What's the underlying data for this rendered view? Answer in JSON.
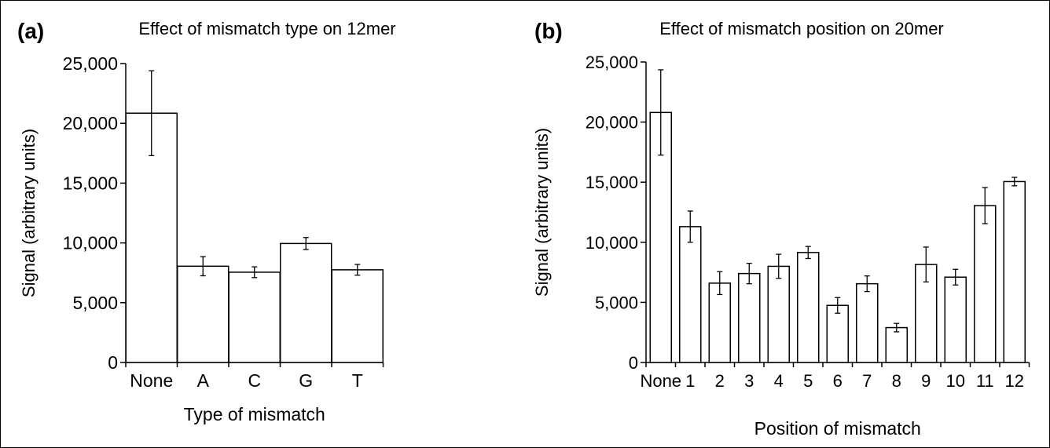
{
  "colors": {
    "bar_fill": "#ffffff",
    "bar_stroke": "#000000",
    "axis": "#000000",
    "background": "#ffffff"
  },
  "panels": [
    {
      "panel_label": "(a)"
    },
    {
      "panel_label": "(b)"
    }
  ],
  "chart_data": [
    {
      "type": "bar",
      "title": "Effect of mismatch type on 12mer",
      "xlabel": "Type of mismatch",
      "ylabel": "Signal (arbitrary units)",
      "categories": [
        "None",
        "A",
        "C",
        "G",
        "T"
      ],
      "values": [
        20850,
        8050,
        7550,
        9950,
        7750
      ],
      "errors": [
        3550,
        800,
        450,
        500,
        450
      ],
      "ylim": [
        0,
        25000
      ],
      "yticks": [
        0,
        5000,
        10000,
        15000,
        20000,
        25000
      ],
      "ytick_labels": [
        "0",
        "5,000",
        "10,000",
        "15,000",
        "20,000",
        "25,000"
      ],
      "grid": false,
      "legend": "none"
    },
    {
      "type": "bar",
      "title": "Effect of mismatch position on 20mer",
      "xlabel": "Position of mismatch",
      "ylabel": "Signal (arbitrary units)",
      "categories": [
        "None",
        "1",
        "2",
        "3",
        "4",
        "5",
        "6",
        "7",
        "8",
        "9",
        "10",
        "11",
        "12"
      ],
      "values": [
        20800,
        11300,
        6600,
        7400,
        8000,
        9150,
        4750,
        6550,
        2900,
        8150,
        7100,
        13050,
        15050
      ],
      "errors": [
        3550,
        1300,
        950,
        850,
        1000,
        500,
        650,
        650,
        350,
        1450,
        650,
        1500,
        350
      ],
      "ylim": [
        0,
        25000
      ],
      "yticks": [
        0,
        5000,
        10000,
        15000,
        20000,
        25000
      ],
      "ytick_labels": [
        "0",
        "5,000",
        "10,000",
        "15,000",
        "20,000",
        "25,000"
      ],
      "grid": false,
      "legend": "none"
    }
  ]
}
